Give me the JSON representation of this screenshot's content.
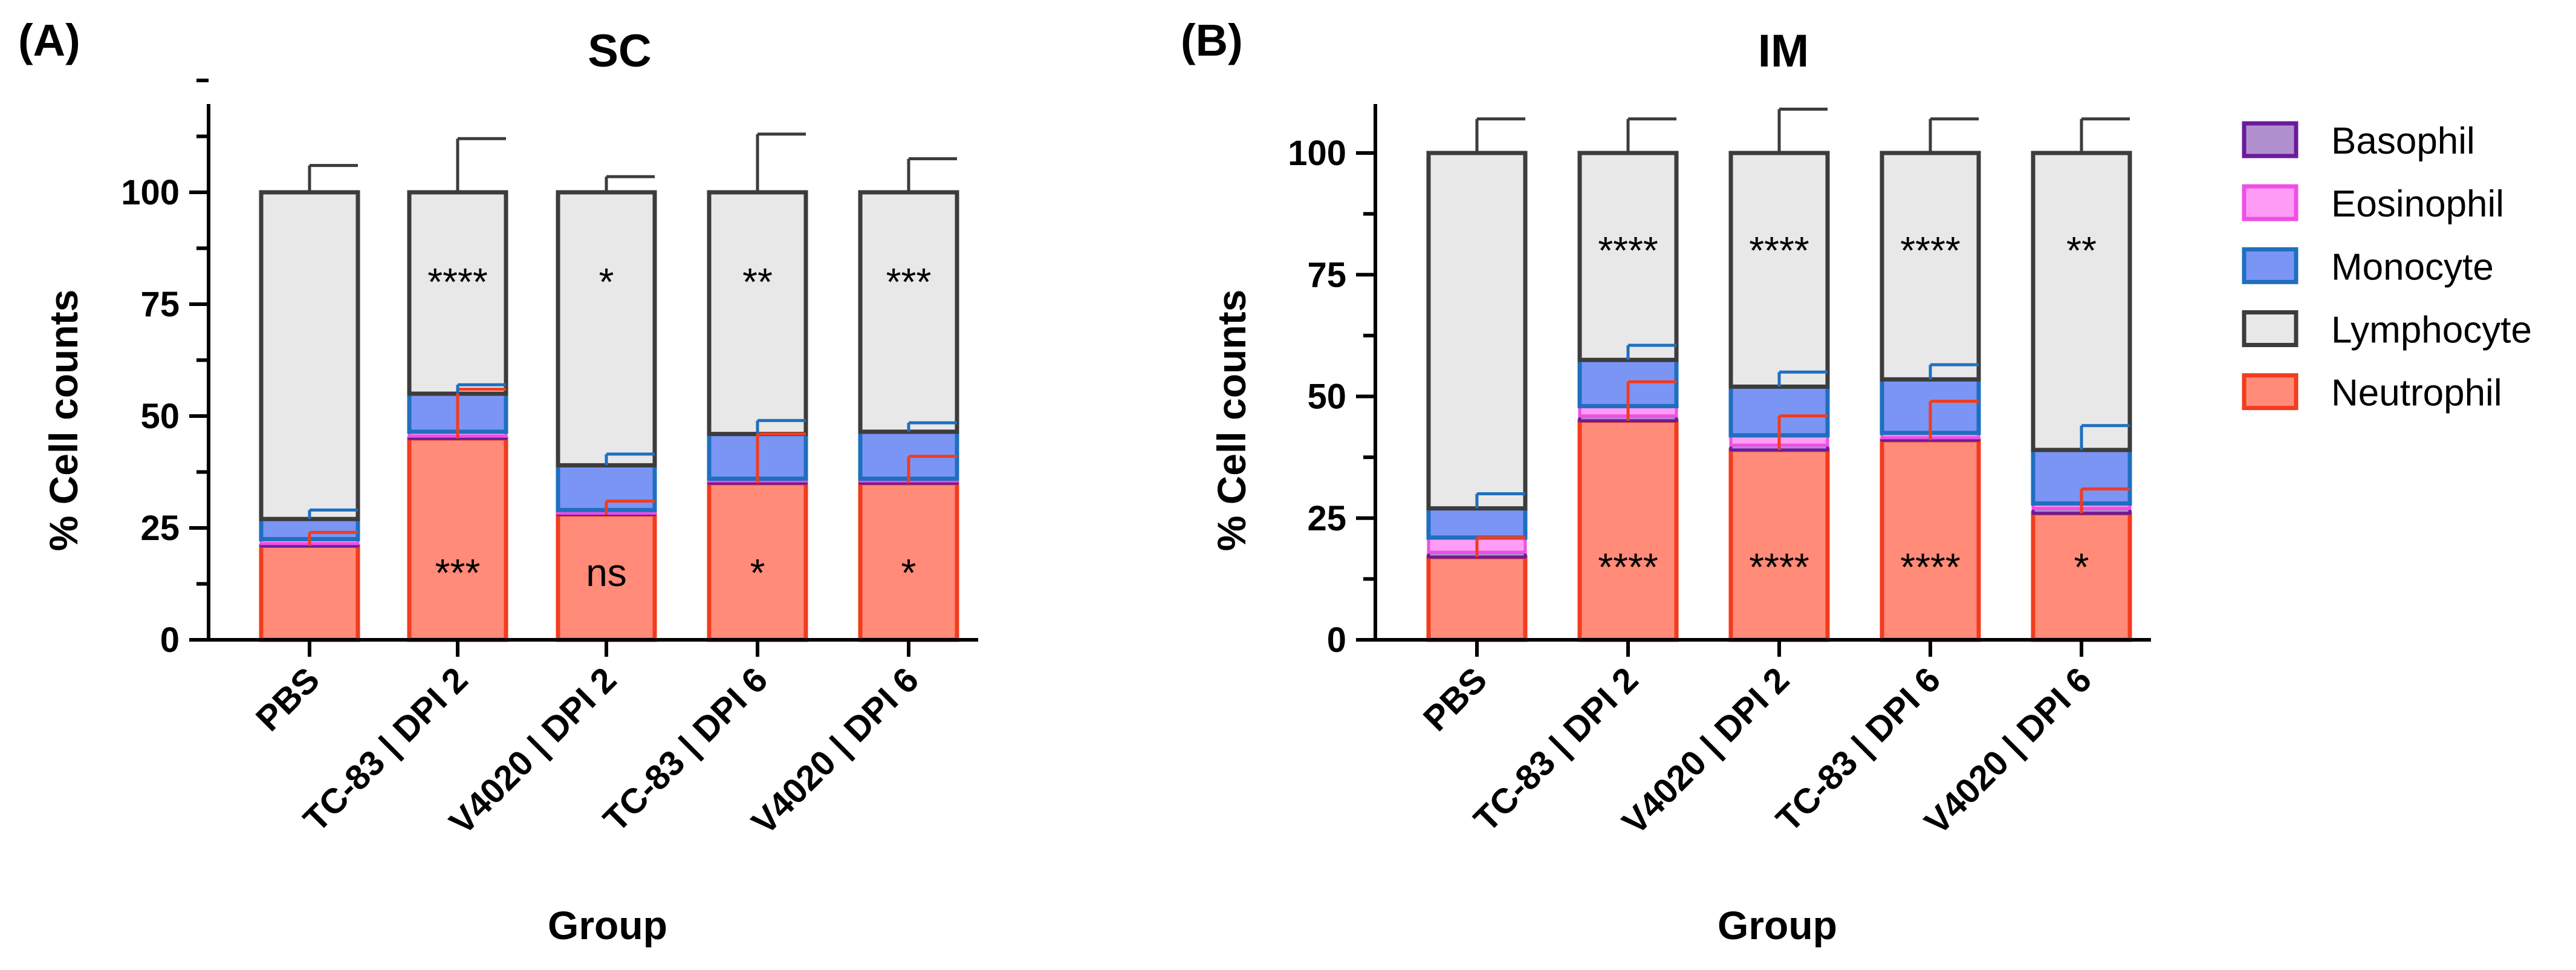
{
  "chart_data": [
    {
      "type": "bar",
      "stacked": true,
      "panel_label": "(A)",
      "title": "SC",
      "xlabel": "Group",
      "ylabel": "% Cell counts",
      "ylim": [
        0,
        125
      ],
      "yticks": [
        0,
        25,
        50,
        75,
        100
      ],
      "categories": [
        "PBS",
        "TC-83 | DPI 2",
        "V4020 | DPI 2",
        "TC-83 | DPI 6",
        "V4020 | DPI 6"
      ],
      "series": [
        {
          "name": "Neutrophil",
          "values": [
            21,
            45,
            28,
            35,
            35
          ],
          "error": [
            3,
            11,
            3,
            11,
            6
          ]
        },
        {
          "name": "Basophil",
          "values": [
            0.5,
            0.5,
            0.3,
            0.5,
            0.5
          ],
          "error": [
            0,
            0,
            0,
            0,
            0
          ]
        },
        {
          "name": "Eosinophil",
          "values": [
            1,
            1,
            0.7,
            0.5,
            0.5
          ],
          "error": [
            0,
            0,
            0,
            0,
            0
          ]
        },
        {
          "name": "Monocyte",
          "values": [
            4.5,
            8.5,
            10,
            10,
            10.5
          ],
          "error": [
            2,
            2,
            2.5,
            3,
            2
          ]
        },
        {
          "name": "Lymphocyte",
          "values": [
            73,
            45,
            61,
            54,
            53.5
          ],
          "error": [
            6,
            12,
            3.5,
            13,
            7.5
          ]
        }
      ],
      "annotations": {
        "neutrophil": [
          "",
          "***",
          "ns",
          "*",
          "*"
        ],
        "lymphocyte": [
          "",
          "****",
          "*",
          "**",
          "***"
        ]
      }
    },
    {
      "type": "bar",
      "stacked": true,
      "panel_label": "(B)",
      "title": "IM",
      "xlabel": "Group",
      "ylabel": "% Cell counts",
      "ylim": [
        0,
        110
      ],
      "yticks": [
        0,
        25,
        50,
        75,
        100
      ],
      "categories": [
        "PBS",
        "TC-83 | DPI 2",
        "V4020 | DPI 2",
        "TC-83 | DPI 6",
        "V4020 | DPI 6"
      ],
      "series": [
        {
          "name": "Neutrophil",
          "values": [
            17,
            45,
            39,
            41,
            26
          ],
          "error": [
            4,
            8,
            7,
            8,
            5
          ]
        },
        {
          "name": "Basophil",
          "values": [
            1,
            1,
            1,
            0.5,
            1
          ],
          "error": [
            0,
            0,
            0,
            0,
            0
          ]
        },
        {
          "name": "Eosinophil",
          "values": [
            3,
            2,
            2,
            1,
            1
          ],
          "error": [
            0,
            0,
            0,
            0,
            0
          ]
        },
        {
          "name": "Monocyte",
          "values": [
            6,
            9.5,
            10,
            11,
            11
          ],
          "error": [
            3,
            3,
            3,
            3,
            5
          ]
        },
        {
          "name": "Lymphocyte",
          "values": [
            73,
            42.5,
            48,
            46.5,
            61
          ],
          "error": [
            7,
            7,
            9,
            7,
            7
          ]
        }
      ],
      "annotations": {
        "neutrophil": [
          "",
          "****",
          "****",
          "****",
          "*"
        ],
        "lymphocyte": [
          "",
          "****",
          "****",
          "****",
          "**"
        ]
      }
    }
  ],
  "legend": {
    "placement": "right",
    "items": [
      {
        "name": "Basophil",
        "fill": "#b08fcf",
        "stroke": "#6a1b9a"
      },
      {
        "name": "Eosinophil",
        "fill": "#ff9cf5",
        "stroke": "#ef4fe4"
      },
      {
        "name": "Monocyte",
        "fill": "#7b95f5",
        "stroke": "#1f6fbf"
      },
      {
        "name": "Lymphocyte",
        "fill": "#e8e8e8",
        "stroke": "#3c3c3c"
      },
      {
        "name": "Neutrophil",
        "fill": "#ff8b78",
        "stroke": "#f23c1e"
      }
    ]
  },
  "colors": {
    "Neutrophil": {
      "fill": "#ff8b78",
      "stroke": "#f23c1e"
    },
    "Basophil": {
      "fill": "#b08fcf",
      "stroke": "#6a1b9a"
    },
    "Eosinophil": {
      "fill": "#ff9cf5",
      "stroke": "#ef4fe4"
    },
    "Monocyte": {
      "fill": "#7b95f5",
      "stroke": "#1f6fbf"
    },
    "Lymphocyte": {
      "fill": "#e8e8e8",
      "stroke": "#3c3c3c"
    },
    "axis": "#000000",
    "background": "#ffffff"
  }
}
